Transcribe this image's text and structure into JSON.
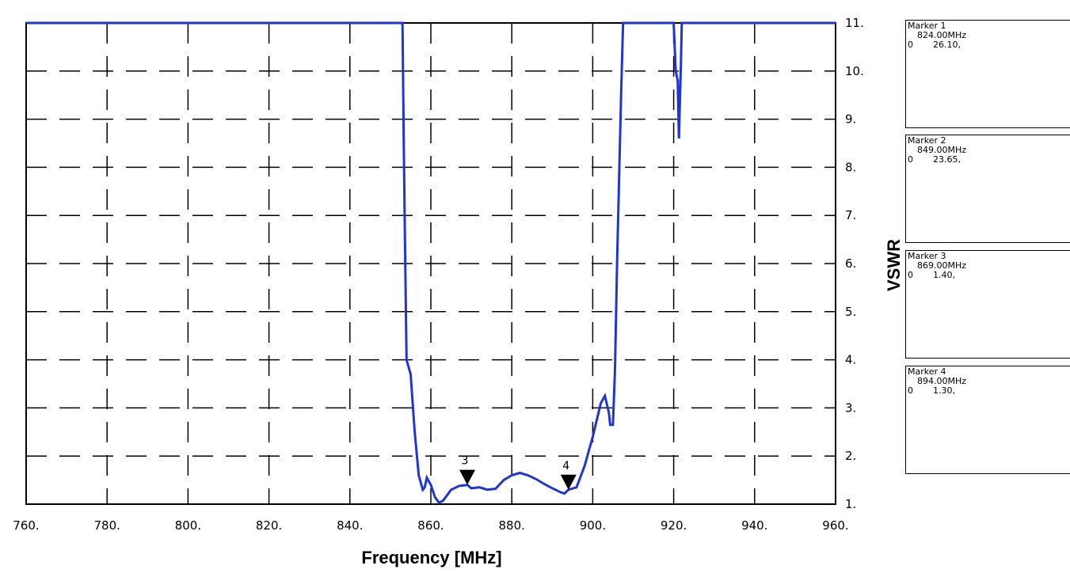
{
  "chart_data": {
    "type": "line",
    "title": "",
    "xlabel": "Frequency [MHz]",
    "ylabel": "VSWR",
    "xlim": [
      760,
      960
    ],
    "ylim": [
      1,
      11
    ],
    "x_ticks": [
      "760.",
      "780.",
      "800.",
      "820.",
      "840.",
      "860.",
      "880.",
      "900.",
      "920.",
      "940.",
      "960."
    ],
    "y_ticks": [
      "1.",
      "2.",
      "3.",
      "4.",
      "5.",
      "6.",
      "7.",
      "8.",
      "9.",
      "10.",
      "11."
    ],
    "grid": true,
    "series": [
      {
        "color": "#1f35d6",
        "points": [
          [
            760,
            11
          ],
          [
            853,
            11
          ],
          [
            853.3,
            8.5
          ],
          [
            853.6,
            6.5
          ],
          [
            854,
            4.0
          ],
          [
            855,
            3.7
          ],
          [
            856,
            2.5
          ],
          [
            857,
            1.6
          ],
          [
            858,
            1.3
          ],
          [
            858.5,
            1.35
          ],
          [
            859,
            1.55
          ],
          [
            860,
            1.4
          ],
          [
            861,
            1.15
          ],
          [
            862,
            1.03
          ],
          [
            863,
            1.07
          ],
          [
            865,
            1.3
          ],
          [
            867,
            1.38
          ],
          [
            869,
            1.4
          ],
          [
            870,
            1.33
          ],
          [
            872,
            1.35
          ],
          [
            874,
            1.3
          ],
          [
            876,
            1.32
          ],
          [
            878,
            1.5
          ],
          [
            880,
            1.6
          ],
          [
            882,
            1.65
          ],
          [
            884,
            1.6
          ],
          [
            886,
            1.52
          ],
          [
            888,
            1.42
          ],
          [
            890,
            1.33
          ],
          [
            892,
            1.25
          ],
          [
            893,
            1.22
          ],
          [
            894,
            1.3
          ],
          [
            896,
            1.35
          ],
          [
            898,
            1.8
          ],
          [
            900,
            2.4
          ],
          [
            901,
            2.75
          ],
          [
            902,
            3.1
          ],
          [
            903,
            3.25
          ],
          [
            904,
            2.9
          ],
          [
            904.3,
            2.65
          ],
          [
            905,
            2.65
          ],
          [
            905.5,
            3.8
          ],
          [
            906,
            6
          ],
          [
            907,
            9.5
          ],
          [
            907.5,
            11
          ],
          [
            920,
            11
          ],
          [
            920.5,
            10.0
          ],
          [
            921,
            9.8
          ],
          [
            921.3,
            8.6
          ],
          [
            921.8,
            10.2
          ],
          [
            922,
            11
          ],
          [
            960,
            11
          ]
        ]
      }
    ],
    "markers": [
      {
        "label": "3",
        "x": 869,
        "y": 1.4
      },
      {
        "label": "4",
        "x": 894,
        "y": 1.3
      }
    ]
  },
  "panels": [
    {
      "title": "Marker 1",
      "freq": "824.00MHz",
      "trace": "0",
      "value": "26.10,"
    },
    {
      "title": "Marker 2",
      "freq": "849.00MHz",
      "trace": "0",
      "value": "23.65,"
    },
    {
      "title": "Marker 3",
      "freq": "869.00MHz",
      "trace": "0",
      "value": "1.40,"
    },
    {
      "title": "Marker 4",
      "freq": "894.00MHz",
      "trace": "0",
      "value": "1.30,"
    }
  ]
}
